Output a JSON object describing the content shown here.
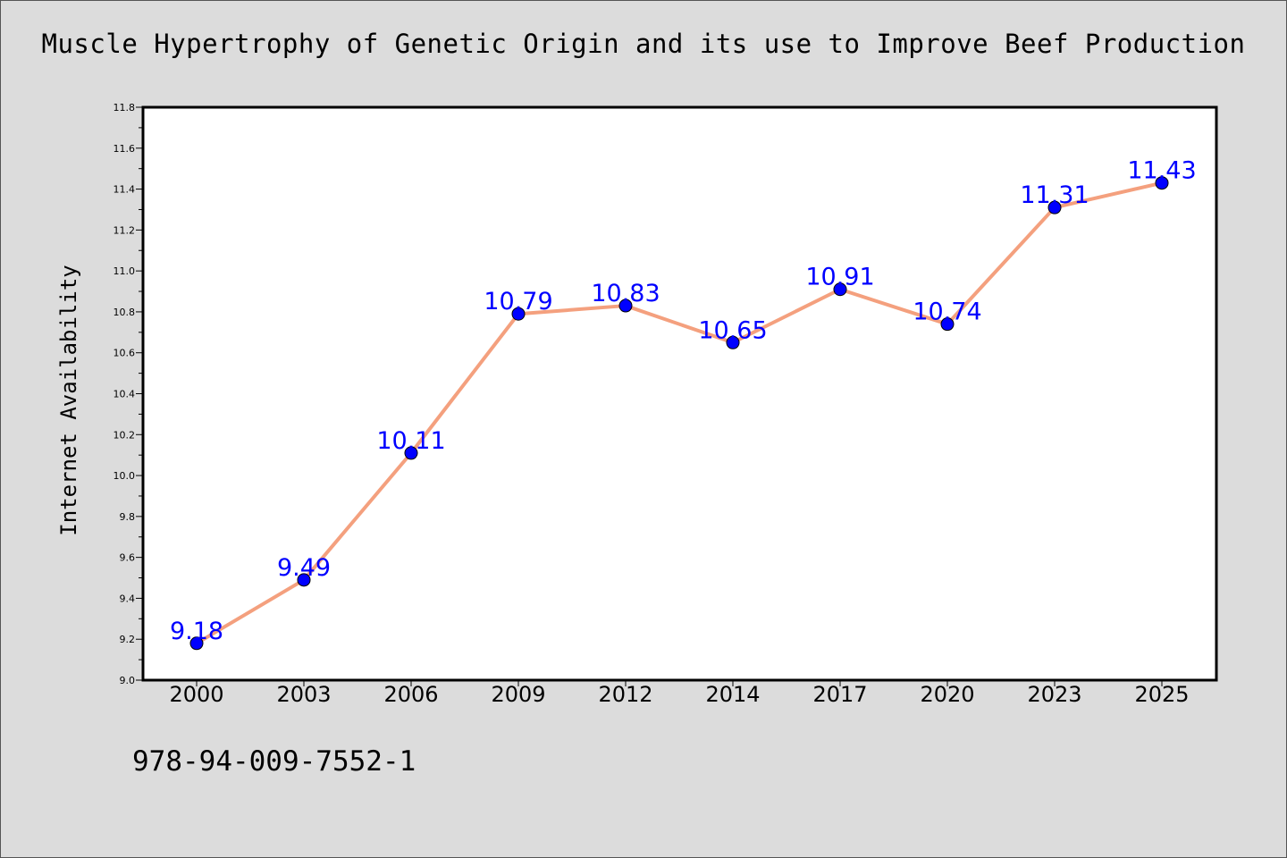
{
  "chart_data": {
    "type": "line",
    "title": "Muscle Hypertrophy of Genetic Origin and its use to Improve Beef Production",
    "xlabel": "",
    "ylabel": "Internet Availability",
    "categories": [
      "2000",
      "2003",
      "2006",
      "2009",
      "2012",
      "2014",
      "2017",
      "2020",
      "2023",
      "2025"
    ],
    "values": [
      9.18,
      9.49,
      10.11,
      10.79,
      10.83,
      10.65,
      10.91,
      10.74,
      11.31,
      11.43
    ],
    "data_labels": [
      "9.18",
      "9.49",
      "10.11",
      "10.79",
      "10.83",
      "10.65",
      "10.91",
      "10.74",
      "11.31",
      "11.43"
    ],
    "ylim": [
      9.0,
      11.8
    ],
    "yticks": [
      "9.0",
      "9.2",
      "9.4",
      "9.6",
      "9.8",
      "10.0",
      "10.2",
      "10.4",
      "10.6",
      "10.8",
      "11.0",
      "11.2",
      "11.4",
      "11.6",
      "11.8"
    ],
    "grid": false,
    "legend": "none",
    "line_color": "#f4a07e",
    "marker_color": "#0000ff"
  },
  "footer": {
    "isbn": "978-94-009-7552-1"
  }
}
